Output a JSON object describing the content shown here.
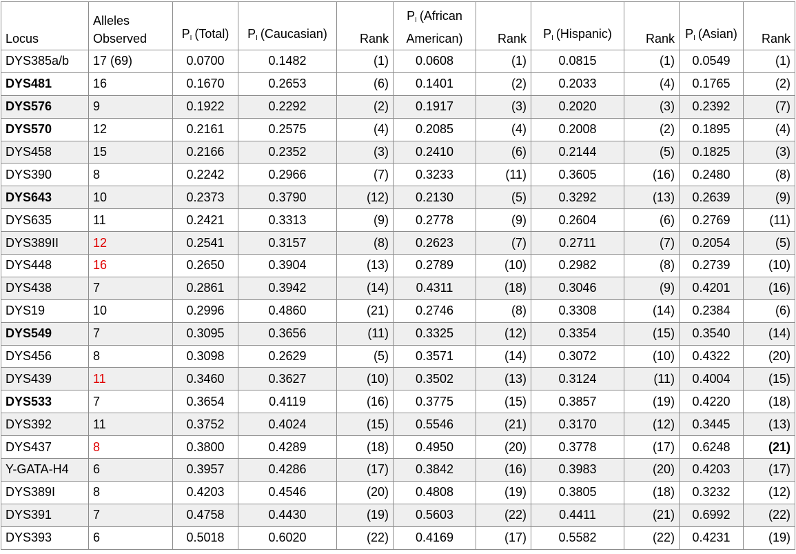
{
  "table": {
    "header": [
      {
        "text": "Locus"
      },
      {
        "text": "Alleles Observed"
      },
      {
        "p": "P",
        "sub": "I",
        "text": "(Total)"
      },
      {
        "p": "P",
        "sub": "I",
        "text": "(Caucasian)"
      },
      {
        "text": "Rank"
      },
      {
        "p": "P",
        "sub": "I",
        "text": "(African American)"
      },
      {
        "text": "Rank"
      },
      {
        "p": "P",
        "sub": "I",
        "text": "(Hispanic)"
      },
      {
        "text": "Rank"
      },
      {
        "p": "P",
        "sub": "I",
        "text": "(Asian)"
      },
      {
        "text": "Rank"
      }
    ],
    "rows": [
      [
        "DYS385a/b",
        "17 (69)",
        "0.0700",
        "0.1482",
        "(1)",
        "0.0608",
        "(1)",
        "0.0815",
        "(1)",
        "0.0549",
        "(1)"
      ],
      [
        "DYS481",
        "16",
        "0.1670",
        "0.2653",
        "(6)",
        "0.1401",
        "(2)",
        "0.2033",
        "(4)",
        "0.1765",
        "(2)"
      ],
      [
        "DYS576",
        "9",
        "0.1922",
        "0.2292",
        "(2)",
        "0.1917",
        "(3)",
        "0.2020",
        "(3)",
        "0.2392",
        "(7)"
      ],
      [
        "DYS570",
        "12",
        "0.2161",
        "0.2575",
        "(4)",
        "0.2085",
        "(4)",
        "0.2008",
        "(2)",
        "0.1895",
        "(4)"
      ],
      [
        "DYS458",
        "15",
        "0.2166",
        "0.2352",
        "(3)",
        "0.2410",
        "(6)",
        "0.2144",
        "(5)",
        "0.1825",
        "(3)"
      ],
      [
        "DYS390",
        "8",
        "0.2242",
        "0.2966",
        "(7)",
        "0.3233",
        "(11)",
        "0.3605",
        "(16)",
        "0.2480",
        "(8)"
      ],
      [
        "DYS643",
        "10",
        "0.2373",
        "0.3790",
        "(12)",
        "0.2130",
        "(5)",
        "0.3292",
        "(13)",
        "0.2639",
        "(9)"
      ],
      [
        "DYS635",
        "11",
        "0.2421",
        "0.3313",
        "(9)",
        "0.2778",
        "(9)",
        "0.2604",
        "(6)",
        "0.2769",
        "(11)"
      ],
      [
        "DYS389II",
        "12",
        "0.2541",
        "0.3157",
        "(8)",
        "0.2623",
        "(7)",
        "0.2711",
        "(7)",
        "0.2054",
        "(5)"
      ],
      [
        "DYS448",
        "16",
        "0.2650",
        "0.3904",
        "(13)",
        "0.2789",
        "(10)",
        "0.2982",
        "(8)",
        "0.2739",
        "(10)"
      ],
      [
        "DYS438",
        "7",
        "0.2861",
        "0.3942",
        "(14)",
        "0.4311",
        "(18)",
        "0.3046",
        "(9)",
        "0.4201",
        "(16)"
      ],
      [
        "DYS19",
        "10",
        "0.2996",
        "0.4860",
        "(21)",
        "0.2746",
        "(8)",
        "0.3308",
        "(14)",
        "0.2384",
        "(6)"
      ],
      [
        "DYS549",
        "7",
        "0.3095",
        "0.3656",
        "(11)",
        "0.3325",
        "(12)",
        "0.3354",
        "(15)",
        "0.3540",
        "(14)"
      ],
      [
        "DYS456",
        "8",
        "0.3098",
        "0.2629",
        "(5)",
        "0.3571",
        "(14)",
        "0.3072",
        "(10)",
        "0.4322",
        "(20)"
      ],
      [
        "DYS439",
        "11",
        "0.3460",
        "0.3627",
        "(10)",
        "0.3502",
        "(13)",
        "0.3124",
        "(11)",
        "0.4004",
        "(15)"
      ],
      [
        "DYS533",
        "7",
        "0.3654",
        "0.4119",
        "(16)",
        "0.3775",
        "(15)",
        "0.3857",
        "(19)",
        "0.4220",
        "(18)"
      ],
      [
        "DYS392",
        "11",
        "0.3752",
        "0.4024",
        "(15)",
        "0.5546",
        "(21)",
        "0.3170",
        "(12)",
        "0.3445",
        "(13)"
      ],
      [
        "DYS437",
        "8",
        "0.3800",
        "0.4289",
        "(18)",
        "0.4950",
        "(20)",
        "0.3778",
        "(17)",
        "0.6248",
        "(21)"
      ],
      [
        "Y-GATA-H4",
        "6",
        "0.3957",
        "0.4286",
        "(17)",
        "0.3842",
        "(16)",
        "0.3983",
        "(20)",
        "0.4203",
        "(17)"
      ],
      [
        "DYS389I",
        "8",
        "0.4203",
        "0.4546",
        "(20)",
        "0.4808",
        "(19)",
        "0.3805",
        "(18)",
        "0.3232",
        "(12)"
      ],
      [
        "DYS391",
        "7",
        "0.4758",
        "0.4430",
        "(19)",
        "0.5603",
        "(22)",
        "0.4411",
        "(21)",
        "0.6992",
        "(22)"
      ],
      [
        "DYS393",
        "6",
        "0.5018",
        "0.6020",
        "(22)",
        "0.4169",
        "(17)",
        "0.5582",
        "(22)",
        "0.4231",
        "(19)"
      ]
    ]
  }
}
